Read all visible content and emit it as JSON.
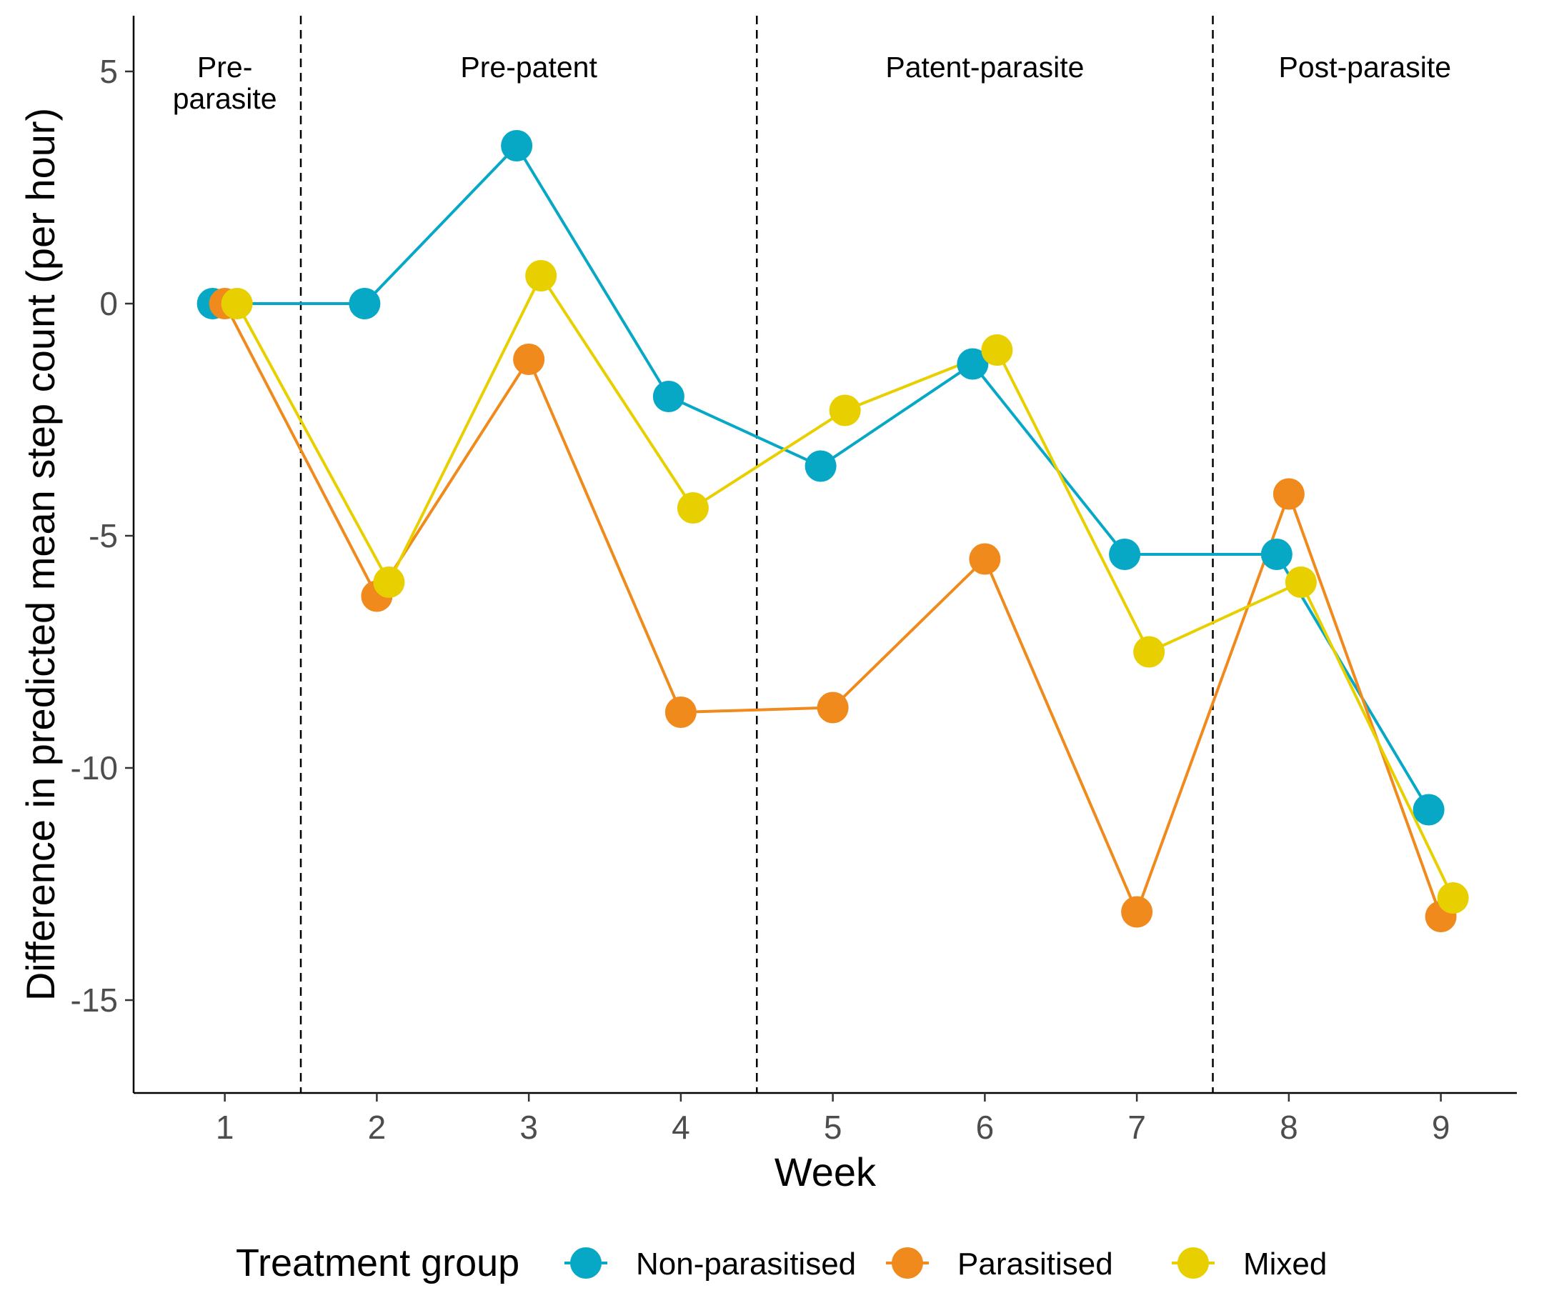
{
  "chart_data": {
    "type": "line",
    "title": "",
    "xlabel": "Week",
    "ylabel": "Difference in predicted mean step count (per hour)",
    "x": [
      1,
      2,
      3,
      4,
      5,
      6,
      7,
      8,
      9
    ],
    "x_tick_labels": [
      "1",
      "2",
      "3",
      "4",
      "5",
      "6",
      "7",
      "8",
      "9"
    ],
    "xlim": [
      0.4,
      9.5
    ],
    "y_ticks": [
      5,
      0,
      -5,
      -10,
      -15
    ],
    "y_tick_labels": [
      "5",
      "0",
      "-5",
      "-10",
      "-15"
    ],
    "ylim": [
      -17,
      6.2
    ],
    "grid": false,
    "phase_boundaries": [
      1.5,
      4.5,
      7.5
    ],
    "phases": [
      {
        "label_lines": [
          "Pre-",
          "parasite"
        ],
        "center": 1.0
      },
      {
        "label_lines": [
          "Pre-patent"
        ],
        "center": 3.0
      },
      {
        "label_lines": [
          "Patent-parasite"
        ],
        "center": 6.0
      },
      {
        "label_lines": [
          "Post-parasite"
        ],
        "center": 8.5
      }
    ],
    "legend": {
      "title": "Treatment group",
      "position": "bottom"
    },
    "series": [
      {
        "name": "Non-parasitised",
        "color": "#06A8C6",
        "dodge": -0.08,
        "values": [
          0.0,
          0.0,
          3.4,
          -2.0,
          -3.5,
          -1.3,
          -5.4,
          -5.4,
          -10.9
        ]
      },
      {
        "name": "Parasitised",
        "color": "#F08A1C",
        "dodge": 0.0,
        "values": [
          0.0,
          -6.3,
          -1.2,
          -8.8,
          -8.7,
          -5.5,
          -13.1,
          -4.1,
          -13.2
        ]
      },
      {
        "name": "Mixed",
        "color": "#E8D000",
        "dodge": 0.08,
        "values": [
          0.0,
          -6.0,
          0.6,
          -4.4,
          -2.3,
          -1.0,
          -7.5,
          -6.0,
          -12.8
        ]
      }
    ]
  }
}
